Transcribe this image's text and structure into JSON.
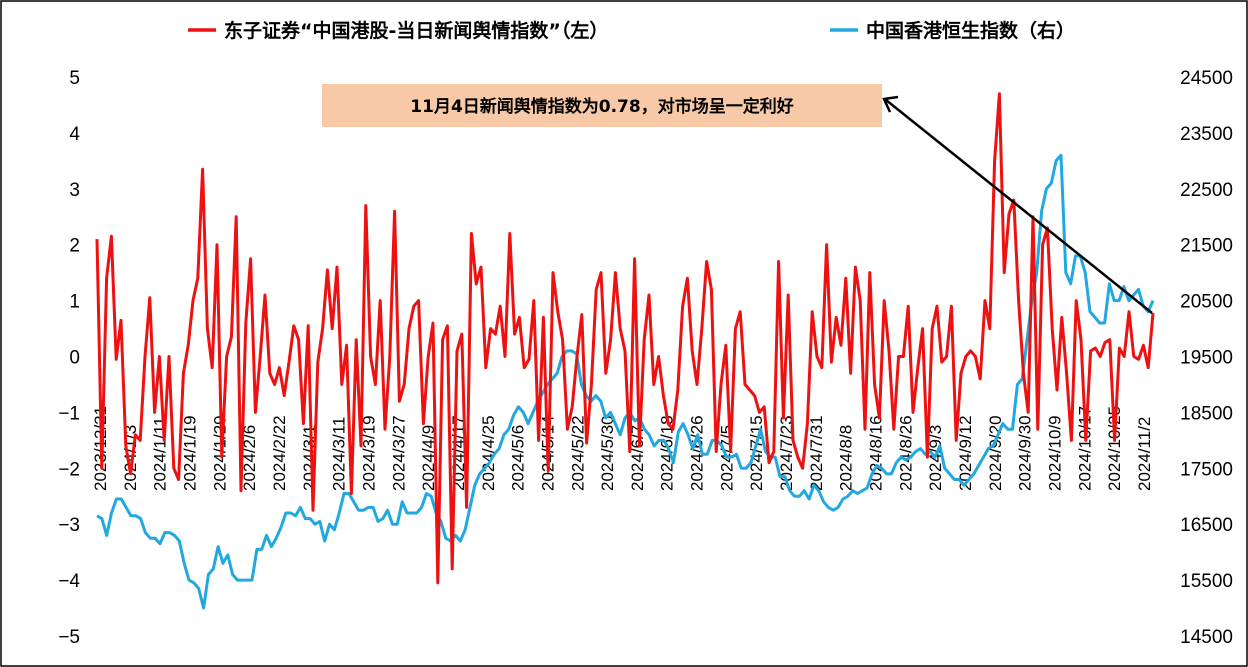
{
  "chart_data": {
    "type": "line",
    "legend_placement": "top",
    "grid": false,
    "colors": {
      "left_series": "#ee1111",
      "right_series": "#22a8e0",
      "annotation_box": "#f7c9a7",
      "frame": "#000000"
    },
    "legend": [
      {
        "label": "东子证券“中国港股-当日新闻舆情指数”（左）",
        "color": "#ee1111"
      },
      {
        "label": "中国香港恒生指数（右）",
        "color": "#22a8e0"
      }
    ],
    "annotation": "11月4日新闻舆情指数为0.78，对市场呈一定利好",
    "left_axis": {
      "min": -5,
      "max": 5,
      "ticks": [
        "5",
        "4",
        "3",
        "2",
        "1",
        "0",
        "−1",
        "−2",
        "−3",
        "−4",
        "−5"
      ]
    },
    "right_axis": {
      "min": 14500,
      "max": 24500,
      "ticks": [
        "24500",
        "23500",
        "22500",
        "21500",
        "20500",
        "19500",
        "18500",
        "17500",
        "16500",
        "15500",
        "14500"
      ]
    },
    "x_tick_labels": [
      "2023/12/21",
      "2024/1/3",
      "2024/1/11",
      "2024/1/19",
      "2024/1/29",
      "2024/2/6",
      "2024/2/22",
      "2024/3/1",
      "2024/3/11",
      "2024/3/19",
      "2024/3/27",
      "2024/4/9",
      "2024/4/17",
      "2024/4/25",
      "2024/5/6",
      "2024/5/14",
      "2024/5/22",
      "2024/5/30",
      "2024/6/7",
      "2024/6/18",
      "2024/6/26",
      "2024/7/5",
      "2024/7/15",
      "2024/7/23",
      "2024/7/31",
      "2024/8/8",
      "2024/8/16",
      "2024/8/26",
      "2024/9/3",
      "2024/9/12",
      "2024/9/20",
      "2024/9/30",
      "2024/10/9",
      "2024/10/17",
      "2024/10/25",
      "2024/11/2"
    ],
    "series": [
      {
        "name": "东子证券“中国港股-当日新闻舆情指数”（左）",
        "axis": "left",
        "values": [
          2.1,
          -2.0,
          1.4,
          2.15,
          -0.05,
          0.65,
          -1.6,
          -2.1,
          -1.4,
          -1.5,
          0.0,
          1.05,
          -1.0,
          0.0,
          -1.5,
          0.0,
          -2.0,
          -2.2,
          -0.3,
          0.2,
          1.0,
          1.4,
          3.35,
          0.5,
          -0.2,
          2.0,
          -1.8,
          0.0,
          0.35,
          2.5,
          -2.4,
          0.6,
          1.75,
          -1.0,
          0.0,
          1.1,
          -0.3,
          -0.5,
          -0.2,
          -0.7,
          -0.1,
          0.55,
          0.3,
          -1.2,
          0.55,
          -2.75,
          -0.1,
          0.5,
          1.55,
          0.5,
          1.6,
          -0.5,
          0.2,
          -2.45,
          0.3,
          -1.6,
          2.7,
          0.0,
          -0.5,
          1.0,
          -1.3,
          0.0,
          2.6,
          -0.8,
          -0.5,
          0.5,
          0.9,
          1.0,
          -1.2,
          0.0,
          0.6,
          -4.05,
          0.3,
          0.55,
          -3.8,
          0.1,
          0.4,
          -2.7,
          2.2,
          1.3,
          1.6,
          -0.2,
          0.5,
          0.4,
          0.9,
          0.0,
          2.2,
          0.4,
          0.7,
          -0.2,
          -0.05,
          1.0,
          -1.5,
          0.7,
          -2.05,
          1.5,
          0.8,
          0.3,
          -1.3,
          -0.9,
          0.0,
          0.75,
          -1.55,
          -0.5,
          1.2,
          1.5,
          -0.3,
          0.3,
          1.5,
          0.5,
          0.1,
          -1.7,
          1.75,
          -1.6,
          0.3,
          1.1,
          -0.5,
          0.0,
          -0.7,
          -1.2,
          -1.3,
          -0.6,
          0.9,
          1.4,
          0.1,
          -0.5,
          0.5,
          1.7,
          1.2,
          -1.7,
          -0.5,
          0.2,
          -1.7,
          0.5,
          0.8,
          -0.5,
          -0.6,
          -0.7,
          -1.0,
          -0.9,
          -1.9,
          -1.7,
          1.7,
          -1.1,
          1.1,
          -1.5,
          -1.8,
          -2.0,
          -1.2,
          0.8,
          0.0,
          -0.2,
          2.0,
          -0.1,
          0.7,
          0.2,
          1.4,
          -0.3,
          1.6,
          1.0,
          -1.3,
          1.5,
          -0.5,
          -1.1,
          1.0,
          0.1,
          -1.3,
          0.0,
          0.0,
          0.9,
          -1.0,
          -0.2,
          0.5,
          -1.8,
          0.5,
          0.9,
          -0.1,
          0.0,
          0.9,
          -1.5,
          -0.3,
          0.0,
          0.1,
          0.0,
          -0.4,
          1.0,
          0.5,
          3.5,
          4.7,
          1.5,
          2.55,
          2.8,
          1.0,
          -0.3,
          -1.0,
          2.5,
          -1.3,
          2.0,
          2.3,
          0.5,
          -0.6,
          0.7,
          -0.3,
          -1.5,
          1.0,
          0.3,
          -1.5,
          0.1,
          0.15,
          0.0,
          0.25,
          0.3,
          -1.5,
          0.15,
          0.0,
          0.8,
          0.0,
          -0.05,
          0.2,
          -0.2,
          0.78
        ]
      },
      {
        "name": "中国香港恒生指数（右）",
        "axis": "right",
        "values": [
          16650,
          16600,
          16300,
          16700,
          16950,
          16950,
          16800,
          16650,
          16650,
          16600,
          16350,
          16250,
          16250,
          16150,
          16350,
          16350,
          16300,
          16200,
          15800,
          15500,
          15450,
          15350,
          15000,
          15600,
          15700,
          16100,
          15800,
          15950,
          15600,
          15500,
          15500,
          15500,
          15500,
          16050,
          16050,
          16300,
          16100,
          16250,
          16450,
          16700,
          16700,
          16650,
          16800,
          16600,
          16600,
          16500,
          16550,
          16200,
          16500,
          16400,
          16700,
          17050,
          17050,
          16900,
          16750,
          16750,
          16800,
          16800,
          16550,
          16600,
          16750,
          16500,
          16500,
          16900,
          16700,
          16700,
          16700,
          16800,
          17050,
          17000,
          16700,
          16550,
          16250,
          16200,
          16300,
          16200,
          16400,
          16800,
          17200,
          17400,
          17500,
          17600,
          17750,
          17850,
          18100,
          18200,
          18450,
          18600,
          18500,
          18300,
          18500,
          18700,
          18850,
          19000,
          19100,
          19200,
          19500,
          19600,
          19600,
          19550,
          19000,
          18800,
          18700,
          18800,
          18700,
          18400,
          18500,
          18300,
          18100,
          18400,
          18500,
          18350,
          18400,
          18200,
          18100,
          17900,
          18000,
          18000,
          17850,
          17600,
          18150,
          18300,
          18100,
          17850,
          18100,
          17750,
          17750,
          18000,
          18000,
          17900,
          17700,
          17700,
          17750,
          17500,
          17500,
          17600,
          17900,
          18200,
          17800,
          17700,
          17700,
          17350,
          17350,
          17100,
          17000,
          17000,
          17100,
          16950,
          17200,
          17100,
          16900,
          16800,
          16750,
          16800,
          16950,
          17000,
          17100,
          17050,
          17100,
          17150,
          17400,
          17550,
          17500,
          17400,
          17400,
          17600,
          17700,
          17650,
          17700,
          17800,
          17850,
          17750,
          17800,
          17700,
          17900,
          17500,
          17400,
          17300,
          17300,
          17200,
          17300,
          17400,
          17550,
          17700,
          17850,
          17900,
          18100,
          18300,
          18200,
          18200,
          19000,
          19100,
          19800,
          20500,
          21000,
          22100,
          22500,
          22600,
          23000,
          23100,
          21000,
          20800,
          21300,
          21300,
          21000,
          20300,
          20200,
          20100,
          20100,
          20800,
          20500,
          20500,
          20750,
          20500,
          20600,
          20700,
          20400,
          20300,
          20500
        ]
      }
    ]
  }
}
